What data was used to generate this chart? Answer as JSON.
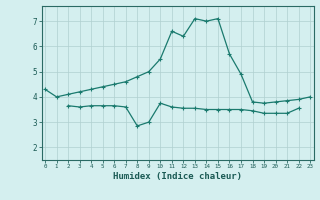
{
  "xlabel": "Humidex (Indice chaleur)",
  "x": [
    0,
    1,
    2,
    3,
    4,
    5,
    6,
    7,
    8,
    9,
    10,
    11,
    12,
    13,
    14,
    15,
    16,
    17,
    18,
    19,
    20,
    21,
    22,
    23
  ],
  "line1": [
    4.3,
    4.0,
    4.1,
    4.2,
    4.3,
    4.4,
    4.5,
    4.6,
    4.8,
    5.0,
    5.5,
    6.6,
    6.4,
    7.1,
    7.0,
    7.1,
    5.7,
    4.9,
    3.8,
    3.75,
    3.8,
    3.85,
    3.9,
    4.0
  ],
  "line2": [
    null,
    null,
    3.65,
    3.6,
    3.65,
    3.65,
    3.65,
    3.6,
    2.85,
    3.0,
    3.75,
    3.6,
    3.55,
    3.55,
    3.5,
    3.5,
    3.5,
    3.5,
    3.45,
    3.35,
    3.35,
    3.35,
    3.55,
    null
  ],
  "line_color": "#1a7a6e",
  "bg_color": "#d4efef",
  "grid_color": "#b0d0d0",
  "ylim": [
    1.5,
    7.6
  ],
  "xlim": [
    -0.3,
    23.3
  ],
  "yticks": [
    2,
    3,
    4,
    5,
    6,
    7
  ],
  "xticks": [
    0,
    1,
    2,
    3,
    4,
    5,
    6,
    7,
    8,
    9,
    10,
    11,
    12,
    13,
    14,
    15,
    16,
    17,
    18,
    19,
    20,
    21,
    22,
    23
  ]
}
